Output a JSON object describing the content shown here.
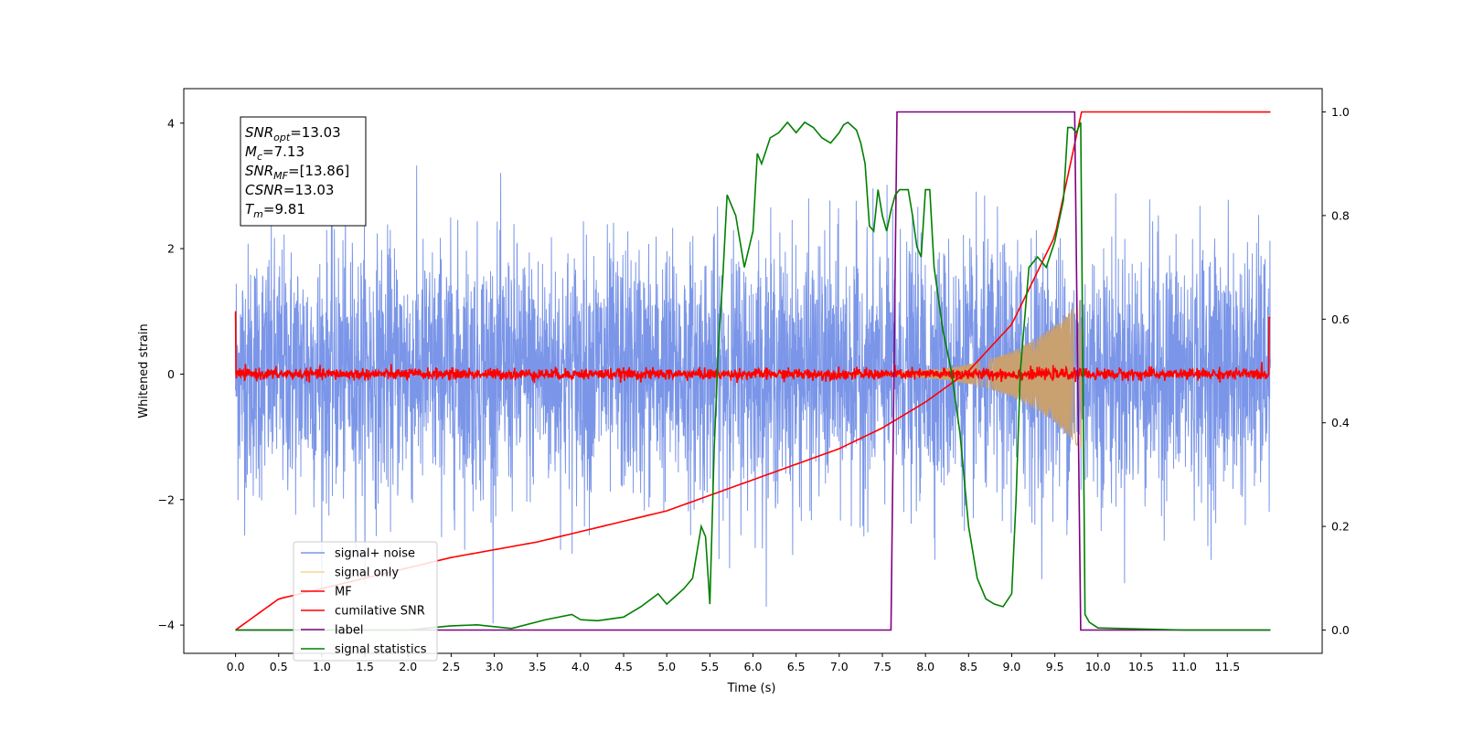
{
  "chart_data": {
    "type": "line",
    "xlabel": "Time (s)",
    "ylabel": "Whitened strain",
    "xlim": [
      -0.6,
      12.6
    ],
    "ylim": [
      -4.45,
      4.55
    ],
    "y2lim": [
      -0.045,
      1.045
    ],
    "xticks": [
      "0.0",
      "0.5",
      "1.0",
      "1.5",
      "2.0",
      "2.5",
      "3.0",
      "3.5",
      "4.0",
      "4.5",
      "5.0",
      "5.5",
      "6.0",
      "6.5",
      "7.0",
      "7.5",
      "8.0",
      "8.5",
      "9.0",
      "9.5",
      "10.0",
      "10.5",
      "11.0",
      "11.5"
    ],
    "yticks": [
      "4",
      "2",
      "0",
      "−2",
      "−4"
    ],
    "y2ticks": [
      "1.0",
      "0.8",
      "0.6",
      "0.4",
      "0.2",
      "0.0"
    ],
    "annotation": {
      "lines": [
        {
          "base": "SNR",
          "sub": "opt",
          "rest": "=13.03"
        },
        {
          "base": "M",
          "sub": "c",
          "rest": "=7.13"
        },
        {
          "base": "SNR",
          "sub": "MF",
          "rest": "=[13.86]"
        },
        {
          "base": "CSNR",
          "sub": "",
          "rest": "=13.03"
        },
        {
          "base": "T",
          "sub": "m",
          "rest": "=9.81"
        }
      ]
    },
    "legend": {
      "position": "lower-left",
      "entries": [
        {
          "label": "signal+ noise",
          "color": "#7b96e8"
        },
        {
          "label": "signal only",
          "color": "#f8d58a"
        },
        {
          "label": "MF",
          "color": "#ff0000"
        },
        {
          "label": "cumilative SNR",
          "color": "#ff0000"
        },
        {
          "label": "label",
          "color": "#800080"
        },
        {
          "label": "signal statistics",
          "color": "#008000"
        }
      ]
    },
    "series": [
      {
        "name": "signal+ noise",
        "axis": "left",
        "color": "#7b96e8",
        "description_range": [
          -3.9,
          3.8
        ],
        "x_range": [
          0.0,
          12.0
        ]
      },
      {
        "name": "signal only",
        "axis": "left",
        "color": "#c9a070",
        "chirp_start": 5.5,
        "merger": 9.81,
        "peak_amp": 1.2
      },
      {
        "name": "MF",
        "axis": "left",
        "color": "#ff0000",
        "x_range": [
          0.0,
          12.0
        ],
        "start": 1.0,
        "end": 0.9
      },
      {
        "name": "cumilative SNR",
        "axis": "right",
        "color": "#ff0000",
        "x": [
          0.0,
          0.5,
          1.0,
          1.5,
          2.0,
          2.5,
          3.0,
          3.5,
          4.0,
          4.5,
          5.0,
          5.5,
          6.0,
          6.5,
          7.0,
          7.5,
          8.0,
          8.5,
          9.0,
          9.5,
          9.81,
          12.0
        ],
        "y": [
          0.0,
          0.06,
          0.08,
          0.1,
          0.12,
          0.14,
          0.155,
          0.17,
          0.19,
          0.21,
          0.23,
          0.26,
          0.29,
          0.32,
          0.35,
          0.39,
          0.44,
          0.5,
          0.59,
          0.76,
          1.0,
          1.0
        ]
      },
      {
        "name": "label",
        "axis": "right",
        "color": "#800080",
        "x": [
          0.0,
          7.6,
          7.67,
          9.73,
          9.8,
          12.0
        ],
        "y": [
          0.0,
          0.0,
          1.0,
          1.0,
          0.0,
          0.0
        ]
      },
      {
        "name": "signal statistics",
        "axis": "right",
        "color": "#008000",
        "x": [
          0.0,
          2.0,
          2.3,
          2.5,
          2.8,
          3.2,
          3.6,
          3.9,
          4.0,
          4.2,
          4.5,
          4.7,
          4.9,
          5.0,
          5.1,
          5.2,
          5.3,
          5.4,
          5.45,
          5.5,
          5.55,
          5.6,
          5.65,
          5.7,
          5.8,
          5.85,
          5.9,
          6.0,
          6.05,
          6.1,
          6.2,
          6.3,
          6.4,
          6.5,
          6.6,
          6.7,
          6.8,
          6.9,
          7.0,
          7.05,
          7.1,
          7.2,
          7.25,
          7.3,
          7.35,
          7.4,
          7.45,
          7.5,
          7.55,
          7.6,
          7.65,
          7.7,
          7.8,
          7.85,
          7.9,
          7.95,
          8.0,
          8.05,
          8.1,
          8.2,
          8.3,
          8.4,
          8.5,
          8.6,
          8.7,
          8.8,
          8.9,
          9.0,
          9.05,
          9.1,
          9.2,
          9.3,
          9.4,
          9.5,
          9.6,
          9.65,
          9.7,
          9.75,
          9.8,
          9.85,
          9.9,
          10.0,
          11.0,
          12.0
        ],
        "y": [
          0.0,
          0.0,
          0.005,
          0.008,
          0.01,
          0.003,
          0.02,
          0.03,
          0.02,
          0.018,
          0.025,
          0.045,
          0.07,
          0.05,
          0.065,
          0.08,
          0.1,
          0.2,
          0.18,
          0.05,
          0.35,
          0.55,
          0.68,
          0.84,
          0.8,
          0.75,
          0.7,
          0.77,
          0.92,
          0.9,
          0.95,
          0.96,
          0.98,
          0.96,
          0.98,
          0.97,
          0.95,
          0.94,
          0.96,
          0.975,
          0.98,
          0.965,
          0.94,
          0.9,
          0.78,
          0.77,
          0.85,
          0.8,
          0.77,
          0.81,
          0.84,
          0.85,
          0.85,
          0.8,
          0.74,
          0.72,
          0.85,
          0.85,
          0.7,
          0.58,
          0.5,
          0.38,
          0.2,
          0.1,
          0.06,
          0.05,
          0.045,
          0.07,
          0.25,
          0.5,
          0.7,
          0.72,
          0.7,
          0.75,
          0.83,
          0.97,
          0.97,
          0.96,
          0.98,
          0.03,
          0.015,
          0.004,
          0.0,
          0.0
        ]
      }
    ]
  }
}
